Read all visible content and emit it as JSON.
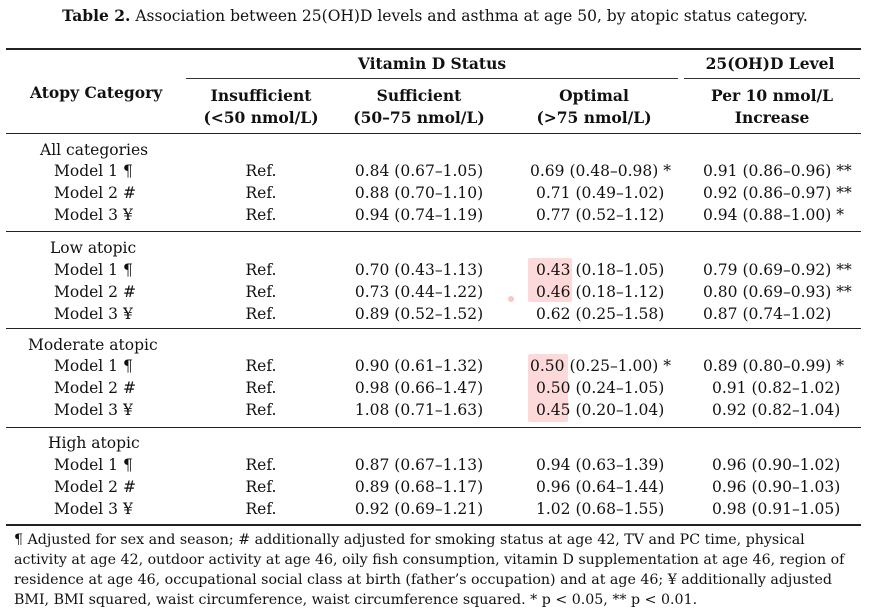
{
  "caption": {
    "label": "Table 2.",
    "text": "Association between 25(OH)D levels and asthma at age 50, by atopic status category."
  },
  "header": {
    "atopy": "Atopy Category",
    "vitd_group": "Vitamin D Status",
    "level_group": "25(OH)D Level",
    "insufficient_1": "Insufficient",
    "insufficient_2": "(<50 nmol/L)",
    "sufficient_1": "Sufficient",
    "sufficient_2": "(50–75 nmol/L)",
    "optimal_1": "Optimal",
    "optimal_2": "(>75 nmol/L)",
    "per10_1": "Per 10 nmol/L",
    "per10_2": "Increase"
  },
  "groups": [
    {
      "name": "All categories",
      "rows": [
        {
          "model": "Model 1 ¶",
          "insufficient": "Ref.",
          "sufficient": "0.84 (0.67–1.05)",
          "optimal": "0.69 (0.48–0.98) *",
          "per10": "0.91 (0.86–0.96) **"
        },
        {
          "model": "Model 2 #",
          "insufficient": "Ref.",
          "sufficient": "0.88 (0.70–1.10)",
          "optimal": "0.71 (0.49–1.02)",
          "per10": "0.92 (0.86–0.97) **"
        },
        {
          "model": "Model 3 ¥",
          "insufficient": "Ref.",
          "sufficient": "0.94 (0.74–1.19)",
          "optimal": "0.77 (0.52–1.12)",
          "per10": "0.94 (0.88–1.00) *"
        }
      ]
    },
    {
      "name": "Low atopic",
      "rows": [
        {
          "model": "Model 1 ¶",
          "insufficient": "Ref.",
          "sufficient": "0.70 (0.43–1.13)",
          "optimal": "0.43 (0.18–1.05)",
          "per10": "0.79 (0.69–0.92) **"
        },
        {
          "model": "Model 2 #",
          "insufficient": "Ref.",
          "sufficient": "0.73 (0.44–1.22)",
          "optimal": "0.46 (0.18–1.12)",
          "per10": "0.80 (0.69–0.93) **"
        },
        {
          "model": "Model 3 ¥",
          "insufficient": "Ref.",
          "sufficient": "0.89 (0.52–1.52)",
          "optimal": "0.62 (0.25–1.58)",
          "per10": "0.87 (0.74–1.02)"
        }
      ]
    },
    {
      "name": "Moderate atopic",
      "rows": [
        {
          "model": "Model 1 ¶",
          "insufficient": "Ref.",
          "sufficient": "0.90 (0.61–1.32)",
          "optimal": "0.50 (0.25–1.00) *",
          "per10": "0.89 (0.80–0.99) *"
        },
        {
          "model": "Model 2 #",
          "insufficient": "Ref.",
          "sufficient": "0.98 (0.66–1.47)",
          "optimal": "0.50 (0.24–1.05)",
          "per10": "0.91 (0.82–1.02)"
        },
        {
          "model": "Model 3 ¥",
          "insufficient": "Ref.",
          "sufficient": "1.08 (0.71–1.63)",
          "optimal": "0.45 (0.20–1.04)",
          "per10": "0.92 (0.82–1.04)"
        }
      ]
    },
    {
      "name": "High atopic",
      "rows": [
        {
          "model": "Model 1 ¶",
          "insufficient": "Ref.",
          "sufficient": "0.87 (0.67–1.13)",
          "optimal": "0.94 (0.63–1.39)",
          "per10": "0.96 (0.90–1.02)"
        },
        {
          "model": "Model 2 #",
          "insufficient": "Ref.",
          "sufficient": "0.89 (0.68–1.17)",
          "optimal": "0.96 (0.64–1.44)",
          "per10": "0.96 (0.90–1.03)"
        },
        {
          "model": "Model 3 ¥",
          "insufficient": "Ref.",
          "sufficient": "0.92 (0.69–1.21)",
          "optimal": "1.02 (0.68–1.55)",
          "per10": "0.98 (0.91–1.05)"
        }
      ]
    }
  ],
  "footnote": "¶ Adjusted for sex and season; # additionally adjusted for smoking status at age 42, TV and PC time, physical activity at age 42, outdoor activity at age 46, oily fish consumption, vitamin D supplementation at age 46, region of residence at age 46, occupational social class at birth (father’s occupation) and at age 46; ¥ additionally adjusted BMI, BMI squared, waist circumference, waist circumference squared. * p < 0.05, ** p < 0.01.",
  "highlight_color": "#f7b7b7"
}
